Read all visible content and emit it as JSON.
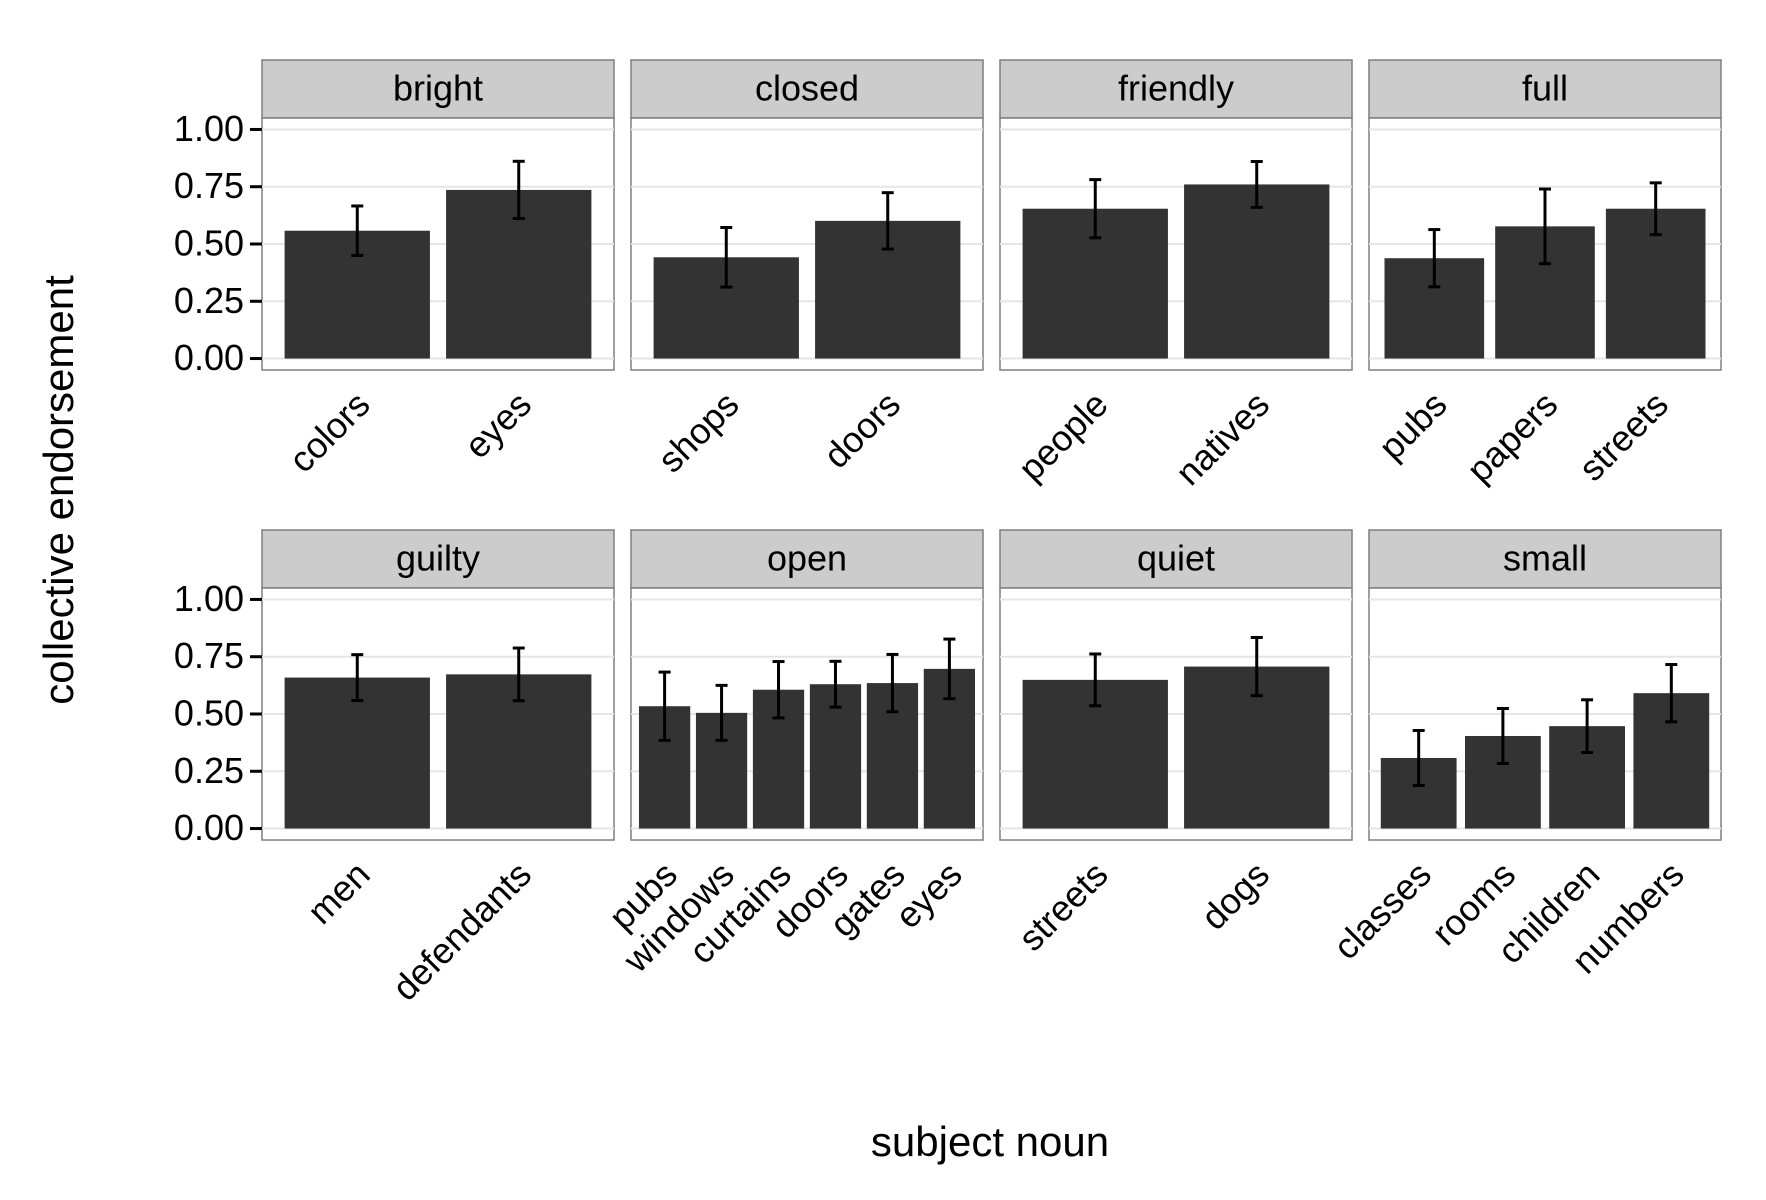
{
  "chart_data": {
    "type": "bar",
    "x_label": "subject noun",
    "y_label": "collective endorsement",
    "ylim": [
      -0.05,
      1.05
    ],
    "yticks": [
      {
        "value": 0,
        "label": "0.00"
      },
      {
        "value": 0.25,
        "label": "0.25"
      },
      {
        "value": 0.5,
        "label": "0.50"
      },
      {
        "value": 0.75,
        "label": "0.75"
      },
      {
        "value": 1,
        "label": "1.00"
      }
    ],
    "grid": true,
    "color": "#333333",
    "strip_color": "#cccccc",
    "facets": [
      {
        "title": "bright",
        "categories": [
          "colors",
          "eyes"
        ],
        "values": [
          0.558,
          0.736
        ],
        "errors": [
          0.108,
          0.125
        ]
      },
      {
        "title": "closed",
        "categories": [
          "shops",
          "doors"
        ],
        "values": [
          0.442,
          0.601
        ],
        "errors": [
          0.13,
          0.123
        ]
      },
      {
        "title": "friendly",
        "categories": [
          "people",
          "natives"
        ],
        "values": [
          0.654,
          0.76
        ],
        "errors": [
          0.127,
          0.1
        ]
      },
      {
        "title": "full",
        "categories": [
          "pubs",
          "papers",
          "streets"
        ],
        "values": [
          0.438,
          0.577,
          0.654
        ],
        "errors": [
          0.125,
          0.163,
          0.113
        ]
      },
      {
        "title": "guilty",
        "categories": [
          "men",
          "defendants"
        ],
        "values": [
          0.659,
          0.673
        ],
        "errors": [
          0.1,
          0.115
        ]
      },
      {
        "title": "open",
        "categories": [
          "pubs",
          "windows",
          "curtains",
          "doors",
          "gates",
          "eyes"
        ],
        "values": [
          0.534,
          0.505,
          0.606,
          0.63,
          0.635,
          0.697
        ],
        "errors": [
          0.149,
          0.12,
          0.123,
          0.1,
          0.125,
          0.13
        ]
      },
      {
        "title": "quiet",
        "categories": [
          "streets",
          "dogs"
        ],
        "values": [
          0.649,
          0.707
        ],
        "errors": [
          0.113,
          0.127
        ]
      },
      {
        "title": "small",
        "categories": [
          "classes",
          "rooms",
          "children",
          "numbers"
        ],
        "values": [
          0.308,
          0.404,
          0.447,
          0.591
        ],
        "errors": [
          0.12,
          0.12,
          0.115,
          0.125
        ]
      }
    ]
  }
}
